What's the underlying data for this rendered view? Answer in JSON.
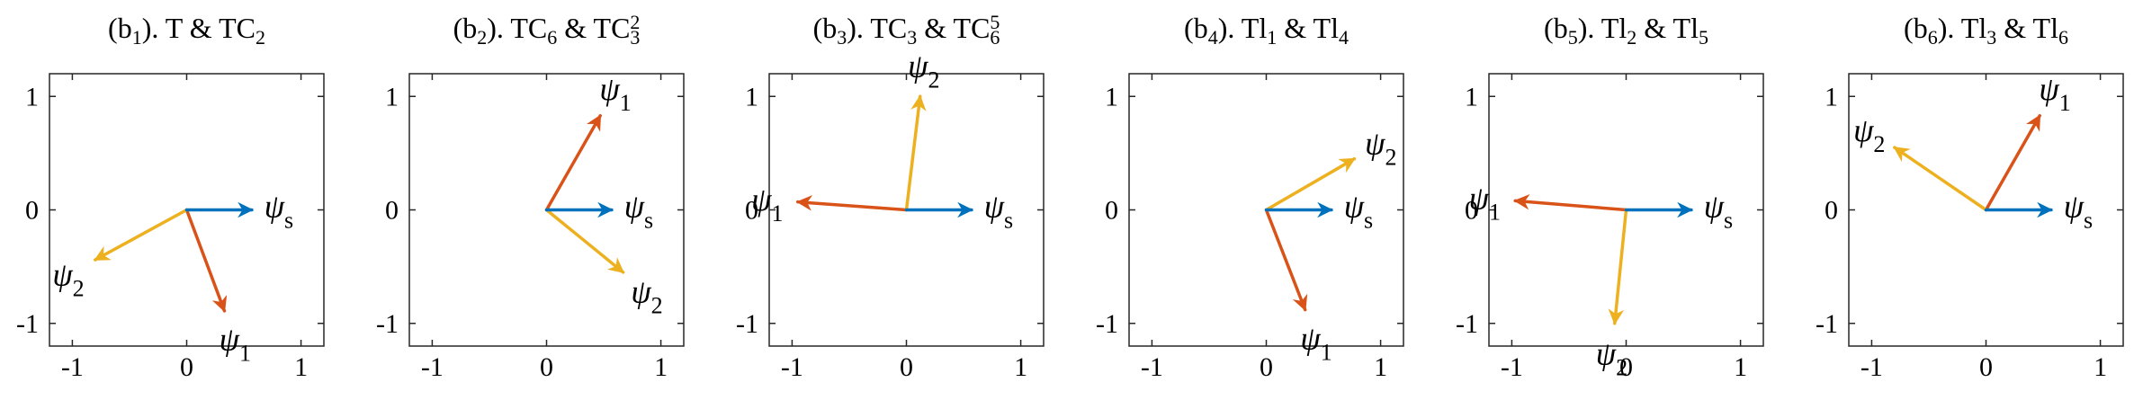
{
  "colors": {
    "psi_s": "#0072BD",
    "psi_1": "#D95319",
    "psi_2": "#EDB120",
    "axis": "#262626"
  },
  "chart_data": [
    {
      "type": "vector",
      "title_prefix": "(b",
      "title_sub": "1",
      "title_rest": "). T & TC",
      "title_rest_sub": "2",
      "xlim": [
        -1.2,
        1.2
      ],
      "ylim": [
        -1.2,
        1.2
      ],
      "xticks": [
        -1,
        0,
        1
      ],
      "yticks": [
        1,
        0,
        -1
      ],
      "xtick_labels": [
        "-1",
        "0",
        "1"
      ],
      "ytick_labels": [
        "1",
        "0",
        "-1"
      ],
      "grid": false,
      "series": [
        {
          "name": "ψs",
          "symbol": "ψ",
          "sub": "s",
          "x": 0.57,
          "y": 0.0
        },
        {
          "name": "ψ1",
          "symbol": "ψ",
          "sub": "1",
          "x": 0.33,
          "y": -0.89
        },
        {
          "name": "ψ2",
          "symbol": "ψ",
          "sub": "2",
          "x": -0.8,
          "y": -0.44
        }
      ]
    },
    {
      "type": "vector",
      "title_prefix": "(b",
      "title_sub": "2",
      "title_rest": "). TC",
      "title_rest_sub": "6",
      "title_tail": " & TC",
      "title_tail_sub": "3",
      "title_tail_sup": "2",
      "xlim": [
        -1.2,
        1.2
      ],
      "ylim": [
        -1.2,
        1.2
      ],
      "xticks": [
        -1,
        0,
        1
      ],
      "yticks": [
        1,
        0,
        -1
      ],
      "xtick_labels": [
        "-1",
        "0",
        "1"
      ],
      "ytick_labels": [
        "1",
        "0",
        "-1"
      ],
      "grid": false,
      "series": [
        {
          "name": "ψs",
          "symbol": "ψ",
          "sub": "s",
          "x": 0.57,
          "y": 0.0
        },
        {
          "name": "ψ1",
          "symbol": "ψ",
          "sub": "1",
          "x": 0.47,
          "y": 0.83
        },
        {
          "name": "ψ2",
          "symbol": "ψ",
          "sub": "2",
          "x": 0.67,
          "y": -0.55
        }
      ]
    },
    {
      "type": "vector",
      "title_prefix": "(b",
      "title_sub": "3",
      "title_rest": "). TC",
      "title_rest_sub": "3",
      "title_tail": " & TC",
      "title_tail_sub": "6",
      "title_tail_sup": "5",
      "xlim": [
        -1.2,
        1.2
      ],
      "ylim": [
        -1.2,
        1.2
      ],
      "xticks": [
        -1,
        0,
        1
      ],
      "yticks": [
        1,
        0,
        -1
      ],
      "xtick_labels": [
        "-1",
        "0",
        "1"
      ],
      "ytick_labels": [
        "1",
        "0",
        "-1"
      ],
      "grid": false,
      "series": [
        {
          "name": "ψs",
          "symbol": "ψ",
          "sub": "s",
          "x": 0.57,
          "y": 0.0
        },
        {
          "name": "ψ1",
          "symbol": "ψ",
          "sub": "1",
          "x": -0.95,
          "y": 0.07
        },
        {
          "name": "ψ2",
          "symbol": "ψ",
          "sub": "2",
          "x": 0.12,
          "y": 1.0
        }
      ]
    },
    {
      "type": "vector",
      "title_prefix": "(b",
      "title_sub": "4",
      "title_rest": "). Tl",
      "title_rest_sub": "1",
      "title_tail": " & Tl",
      "title_tail_sub": "4",
      "xlim": [
        -1.2,
        1.2
      ],
      "ylim": [
        -1.2,
        1.2
      ],
      "xticks": [
        -1,
        0,
        1
      ],
      "yticks": [
        1,
        0,
        -1
      ],
      "xtick_labels": [
        "-1",
        "0",
        "1"
      ],
      "ytick_labels": [
        "1",
        "0",
        "-1"
      ],
      "grid": false,
      "series": [
        {
          "name": "ψs",
          "symbol": "ψ",
          "sub": "s",
          "x": 0.57,
          "y": 0.0
        },
        {
          "name": "ψ1",
          "symbol": "ψ",
          "sub": "1",
          "x": 0.34,
          "y": -0.88
        },
        {
          "name": "ψ2",
          "symbol": "ψ",
          "sub": "2",
          "x": 0.77,
          "y": 0.45
        }
      ]
    },
    {
      "type": "vector",
      "title_prefix": "(b",
      "title_sub": "5",
      "title_rest": "). Tl",
      "title_rest_sub": "2",
      "title_tail": " & Tl",
      "title_tail_sub": "5",
      "xlim": [
        -1.2,
        1.2
      ],
      "ylim": [
        -1.2,
        1.2
      ],
      "xticks": [
        -1,
        0,
        1
      ],
      "yticks": [
        1,
        0,
        -1
      ],
      "xtick_labels": [
        "-1",
        "0",
        "1"
      ],
      "ytick_labels": [
        "1",
        "0",
        "-1"
      ],
      "grid": false,
      "series": [
        {
          "name": "ψs",
          "symbol": "ψ",
          "sub": "s",
          "x": 0.57,
          "y": 0.0
        },
        {
          "name": "ψ1",
          "symbol": "ψ",
          "sub": "1",
          "x": -0.97,
          "y": 0.08
        },
        {
          "name": "ψ2",
          "symbol": "ψ",
          "sub": "2",
          "x": -0.1,
          "y": -1.0
        }
      ]
    },
    {
      "type": "vector",
      "title_prefix": "(b",
      "title_sub": "6",
      "title_rest": "). Tl",
      "title_rest_sub": "3",
      "title_tail": " & Tl",
      "title_tail_sub": "6",
      "xlim": [
        -1.2,
        1.2
      ],
      "ylim": [
        -1.2,
        1.2
      ],
      "xticks": [
        -1,
        0,
        1
      ],
      "yticks": [
        1,
        0,
        -1
      ],
      "xtick_labels": [
        "-1",
        "0",
        "1"
      ],
      "ytick_labels": [
        "1",
        "0",
        "-1"
      ],
      "grid": false,
      "series": [
        {
          "name": "ψs",
          "symbol": "ψ",
          "sub": "s",
          "x": 0.57,
          "y": 0.0
        },
        {
          "name": "ψ1",
          "symbol": "ψ",
          "sub": "1",
          "x": 0.47,
          "y": 0.83
        },
        {
          "name": "ψ2",
          "symbol": "ψ",
          "sub": "2",
          "x": -0.8,
          "y": 0.55
        }
      ]
    }
  ]
}
